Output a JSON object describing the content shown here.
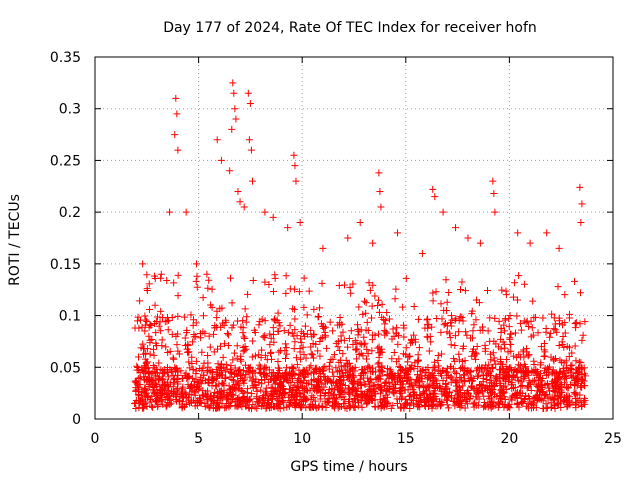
{
  "chart_data": {
    "type": "scatter",
    "title": "Day 177 of 2024, Rate Of TEC Index for receiver hofn",
    "xlabel": "GPS time / hours",
    "ylabel": "ROTI / TECUs",
    "xlim": [
      0,
      25
    ],
    "ylim": [
      0,
      0.35
    ],
    "x_ticks": [
      "0",
      "5",
      "10",
      "15",
      "20",
      "25"
    ],
    "y_ticks": [
      "0",
      "0.05",
      "0.1",
      "0.15",
      "0.2",
      "0.25",
      "0.3",
      "0.35"
    ],
    "grid": true,
    "legend": "none",
    "marker": "plus",
    "color": "#ff0000",
    "x_range_of_data": [
      1.9,
      23.7
    ],
    "typical_band": [
      0.01,
      0.1
    ],
    "series": [
      {
        "x": [
          3.9,
          3.95,
          3.85,
          4.0,
          5.9,
          6.1,
          6.65,
          6.7,
          6.75,
          6.6,
          6.8,
          7.4,
          7.5,
          7.45,
          7.55,
          9.6,
          9.65,
          9.7,
          13.7,
          13.75,
          13.8,
          16.3,
          16.4,
          19.2,
          19.25,
          19.3,
          23.4,
          23.5,
          23.45,
          6.5,
          6.9,
          7.0,
          7.2,
          7.6,
          8.2,
          8.6,
          9.3,
          9.9,
          11.0,
          12.2,
          12.8,
          13.4,
          14.6,
          15.8,
          16.8,
          17.4,
          18.0,
          18.6,
          20.4,
          21.0,
          21.8,
          22.4,
          3.2,
          3.6,
          4.4,
          4.9,
          5.4,
          2.1,
          2.3,
          2.6,
          2.9
        ],
        "y": [
          0.31,
          0.295,
          0.275,
          0.26,
          0.27,
          0.25,
          0.325,
          0.315,
          0.3,
          0.28,
          0.29,
          0.315,
          0.305,
          0.27,
          0.26,
          0.255,
          0.245,
          0.23,
          0.238,
          0.22,
          0.205,
          0.222,
          0.215,
          0.23,
          0.218,
          0.2,
          0.224,
          0.208,
          0.19,
          0.24,
          0.22,
          0.21,
          0.205,
          0.23,
          0.2,
          0.195,
          0.185,
          0.19,
          0.165,
          0.175,
          0.19,
          0.17,
          0.18,
          0.16,
          0.2,
          0.185,
          0.175,
          0.17,
          0.18,
          0.17,
          0.18,
          0.165,
          0.14,
          0.2,
          0.2,
          0.15,
          0.14,
          0.06,
          0.15,
          0.08,
          0.11
        ]
      }
    ]
  }
}
